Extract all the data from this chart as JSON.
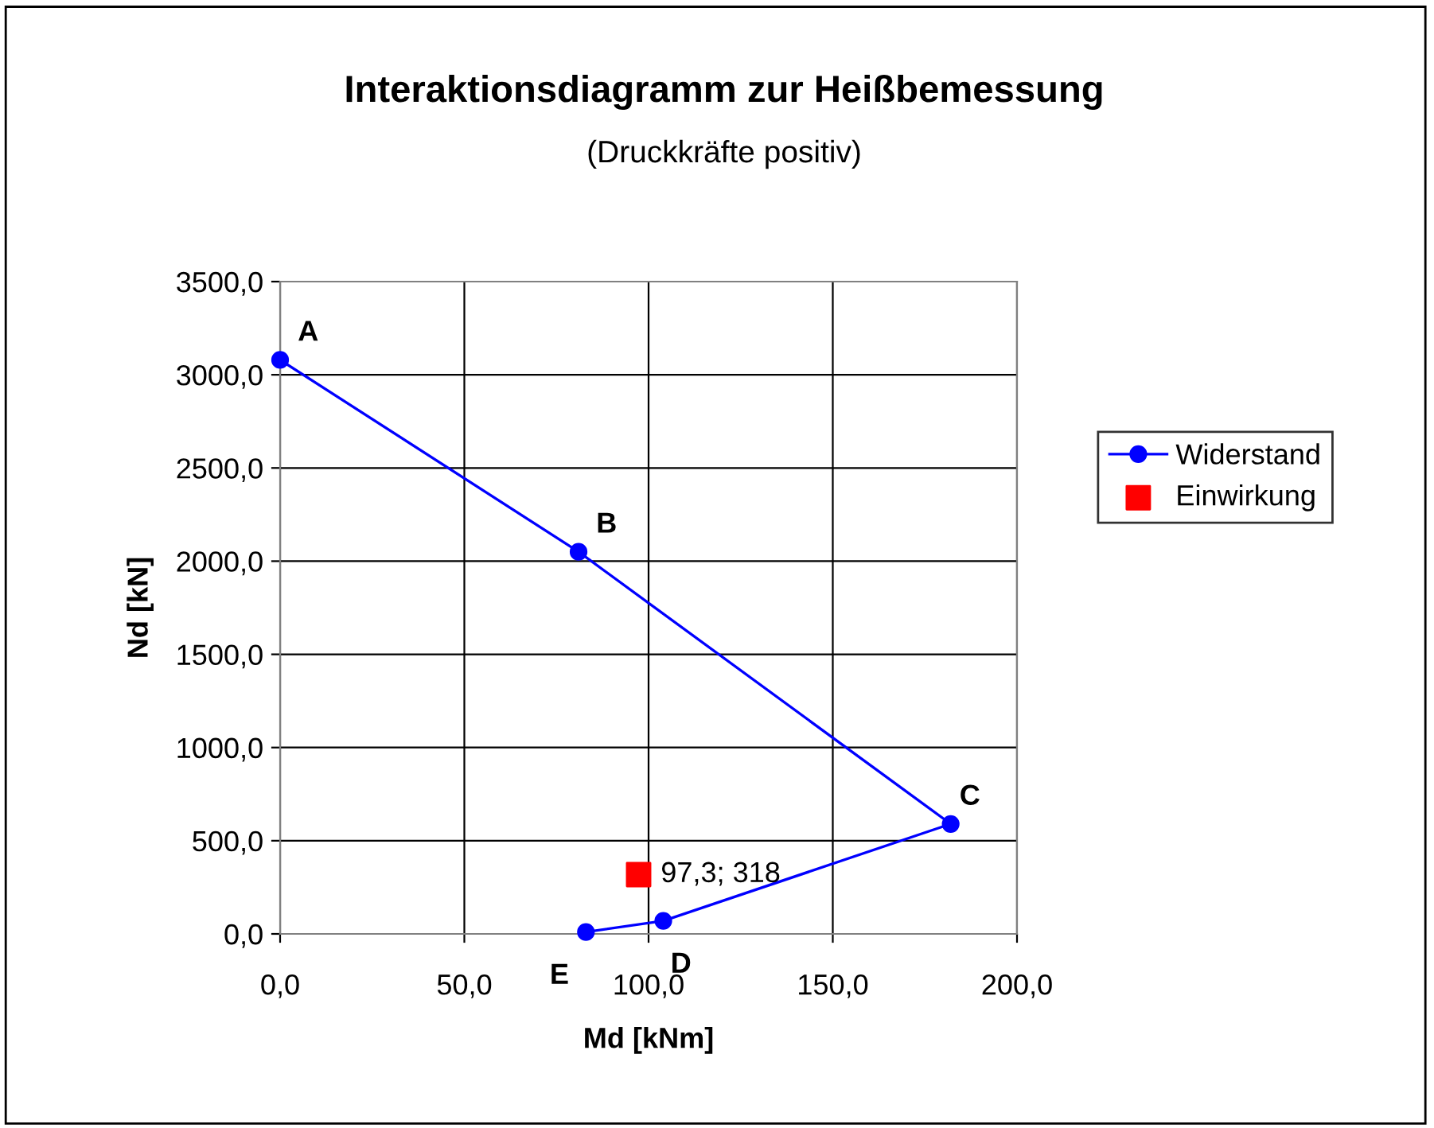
{
  "chart_data": {
    "type": "line",
    "title": "Interaktionsdiagramm zur Heißbemessung",
    "subtitle": "(Druckkräfte positiv)",
    "xlabel": "Md [kNm]",
    "ylabel": "Nd [kN]",
    "series": [
      {
        "name": "Widerstand",
        "color": "#0000ff",
        "marker": "circle",
        "line_style": "solid",
        "x": [
          0,
          81,
          182,
          104,
          83
        ],
        "values": [
          3080,
          2050,
          590,
          70,
          10
        ]
      },
      {
        "name": "Einwirkung",
        "type": "scatter",
        "color": "#ff0000",
        "marker": "square",
        "x": [
          97.3
        ],
        "values": [
          318
        ],
        "value_labels": [
          "97,3; 318"
        ]
      }
    ],
    "annotations": [
      {
        "text": "A",
        "x": 0,
        "y": 3080
      },
      {
        "text": "B",
        "x": 81,
        "y": 2050
      },
      {
        "text": "C",
        "x": 182,
        "y": 590
      },
      {
        "text": "D",
        "x": 104,
        "y": 70
      },
      {
        "text": "E",
        "x": 83,
        "y": 10
      }
    ],
    "xlim": [
      0,
      200
    ],
    "xticks": [
      {
        "value": 0,
        "label": "0,0"
      },
      {
        "value": 50,
        "label": "50,0"
      },
      {
        "value": 100,
        "label": "100,0"
      },
      {
        "value": 150,
        "label": "150,0"
      },
      {
        "value": 200,
        "label": "200,0"
      }
    ],
    "ylim": [
      0,
      3500
    ],
    "yticks": [
      {
        "value": 0,
        "label": "0,0"
      },
      {
        "value": 500,
        "label": "500,0"
      },
      {
        "value": 1000,
        "label": "1000,0"
      },
      {
        "value": 1500,
        "label": "1500,0"
      },
      {
        "value": 2000,
        "label": "2000,0"
      },
      {
        "value": 2500,
        "label": "2500,0"
      },
      {
        "value": 3000,
        "label": "3000,0"
      },
      {
        "value": 3500,
        "label": "3500,0"
      }
    ],
    "grid": true,
    "legend": "right"
  }
}
